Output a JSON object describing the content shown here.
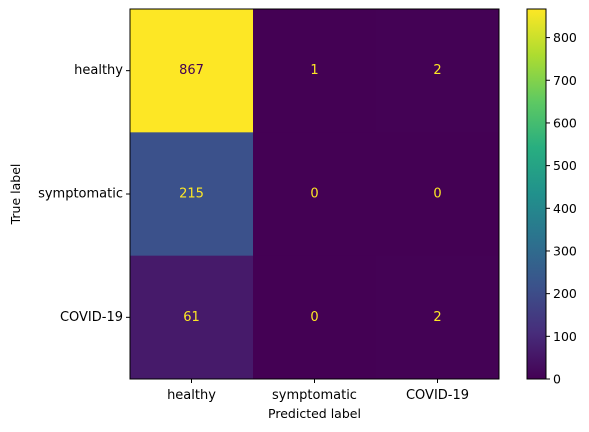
{
  "chart_data": {
    "type": "heatmap",
    "xlabel": "Predicted label",
    "ylabel": "True label",
    "x_categories": [
      "healthy",
      "symptomatic",
      "COVID-19"
    ],
    "y_categories": [
      "healthy",
      "symptomatic",
      "COVID-19"
    ],
    "values": [
      [
        867,
        1,
        2
      ],
      [
        215,
        0,
        0
      ],
      [
        61,
        0,
        2
      ]
    ],
    "colormap": "viridis",
    "colorbar": {
      "range": [
        0,
        867
      ],
      "ticks": [
        "0",
        "100",
        "200",
        "300",
        "400",
        "500",
        "600",
        "700",
        "800"
      ]
    },
    "colors": {
      "text_on_dark": "#fde725",
      "text_on_light": "#440154"
    }
  }
}
